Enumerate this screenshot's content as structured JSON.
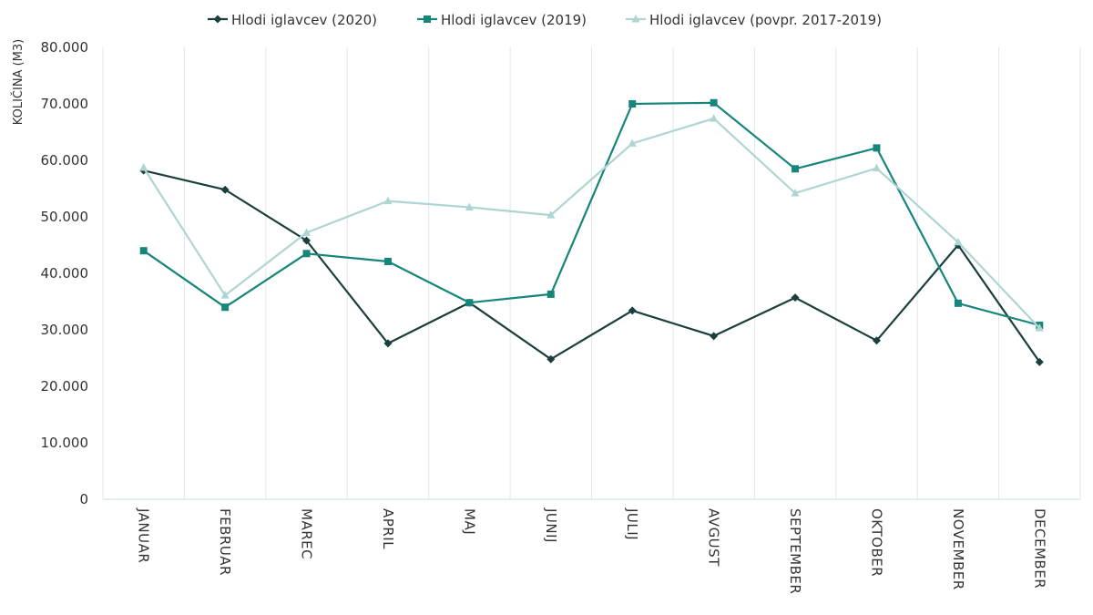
{
  "chart_data": {
    "type": "line",
    "title": "",
    "xlabel": "",
    "ylabel": "KOLIČINA (M3)",
    "ylim": [
      0,
      80000
    ],
    "yticks": [
      0,
      10000,
      20000,
      30000,
      40000,
      50000,
      60000,
      70000,
      80000
    ],
    "ytick_labels": [
      "0",
      "10.000",
      "20.000",
      "30.000",
      "40.000",
      "50.000",
      "60.000",
      "70.000",
      "80.000"
    ],
    "categories": [
      "JANUAR",
      "FEBRUAR",
      "MAREC",
      "APRIL",
      "MAJ",
      "JUNIJ",
      "JULIJ",
      "AVGUST",
      "SEPTEMBER",
      "OKTOBER",
      "NOVEMBER",
      "DECEMBER"
    ],
    "grid": "vertical",
    "legend_position": "top",
    "series": [
      {
        "name": "Hlodi iglavcev (2020)",
        "color": "#1a3f3c",
        "marker": "diamond",
        "values": [
          58200,
          54800,
          45800,
          27600,
          34800,
          24800,
          33400,
          28900,
          35700,
          28100,
          45000,
          24300
        ]
      },
      {
        "name": "Hlodi iglavcev (2019)",
        "color": "#16857a",
        "marker": "square",
        "values": [
          44000,
          34000,
          43500,
          42100,
          34800,
          36300,
          70000,
          70200,
          58500,
          62200,
          34700,
          30800
        ]
      },
      {
        "name": "Hlodi iglavcev (povpr. 2017-2019)",
        "color": "#aed5d2",
        "marker": "triangle",
        "values": [
          58700,
          36100,
          47200,
          52800,
          51700,
          50300,
          63000,
          67400,
          54200,
          58600,
          45500,
          30300
        ]
      }
    ]
  }
}
